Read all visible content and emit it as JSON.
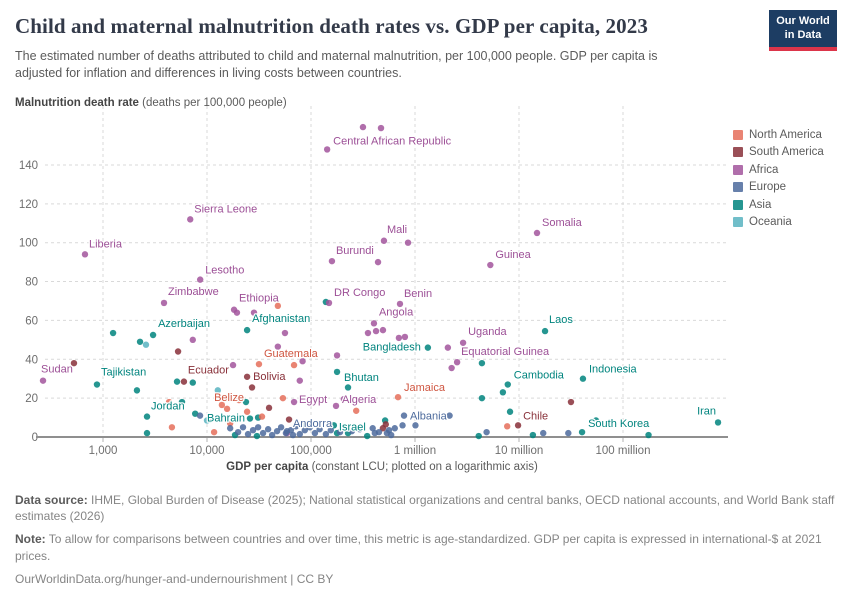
{
  "header": {
    "title": "Child and maternal malnutrition death rates vs. GDP per capita, 2023",
    "subtitle": "The estimated number of deaths attributed to child and maternal malnutrition, per 100,000 people. GDP per capita is adjusted for inflation and differences in living costs between countries.",
    "logo_line1": "Our World",
    "logo_line2": "in Data"
  },
  "chart_data": {
    "type": "scatter",
    "title": "Child and maternal malnutrition death rates vs. GDP per capita, 2023",
    "x_axis": {
      "label_bold": "GDP per capita",
      "label_rest": " (constant LCU; plotted on a logarithmic axis)",
      "scale": "log",
      "ticks": [
        1000,
        10000,
        100000,
        1000000,
        10000000,
        100000000
      ],
      "tick_labels": [
        "1,000",
        "10,000",
        "100,000",
        "1 million",
        "10 million",
        "100 million"
      ]
    },
    "y_axis": {
      "label_bold": "Malnutrition death rate",
      "label_rest": " (deaths per 100,000 people)",
      "ticks": [
        0,
        20,
        40,
        60,
        80,
        100,
        120,
        140
      ],
      "range": [
        0,
        160
      ]
    },
    "legend_position": "right",
    "grid": true,
    "continents": {
      "na": {
        "label": "North America",
        "color": "#e56e5a",
        "label_color": "#cf5641"
      },
      "sa": {
        "label": "South America",
        "color": "#883039",
        "label_color": "#883039"
      },
      "af": {
        "label": "Africa",
        "color": "#a2559c",
        "label_color": "#9c4f96"
      },
      "eu": {
        "label": "Europe",
        "color": "#4c6a9c",
        "label_color": "#4c6a9c"
      },
      "as": {
        "label": "Asia",
        "color": "#00847e",
        "label_color": "#00847e"
      },
      "oc": {
        "label": "Oceania",
        "color": "#58b3c0",
        "label_color": "#2d9aaa"
      }
    },
    "legend_order": [
      "na",
      "sa",
      "af",
      "eu",
      "as",
      "oc"
    ],
    "series": [
      {
        "name": "Central African Republic",
        "continent": "af",
        "gdp": 143000,
        "rate": 148,
        "dx": 6,
        "dy": -5,
        "anchor": "start"
      },
      {
        "name": "Sierra Leone",
        "continent": "af",
        "gdp": 6900,
        "rate": 112,
        "dx": 4,
        "dy": -7,
        "anchor": "start"
      },
      {
        "name": "Liberia",
        "continent": "af",
        "gdp": 671,
        "rate": 94,
        "dx": 4,
        "dy": -7,
        "anchor": "start"
      },
      {
        "name": "Somalia",
        "continent": "af",
        "gdp": 14900000,
        "rate": 105,
        "dx": 5,
        "dy": -7,
        "anchor": "start"
      },
      {
        "name": "Mali",
        "continent": "af",
        "gdp": 503000,
        "rate": 101,
        "dx": 3,
        "dy": -8,
        "anchor": "start"
      },
      {
        "name": "Burundi",
        "continent": "af",
        "gdp": 159000,
        "rate": 90.5,
        "dx": 4,
        "dy": -7,
        "anchor": "start"
      },
      {
        "name": "Guinea",
        "continent": "af",
        "gdp": 5300000,
        "rate": 88.5,
        "dx": 5,
        "dy": -7,
        "anchor": "start"
      },
      {
        "name": "DR Congo",
        "continent": "af",
        "gdp": 149000,
        "rate": 69,
        "dx": 5,
        "dy": -7,
        "anchor": "start"
      },
      {
        "name": "Benin",
        "continent": "af",
        "gdp": 717000,
        "rate": 68.5,
        "dx": 4,
        "dy": -7,
        "anchor": "start"
      },
      {
        "name": "Lesotho",
        "continent": "af",
        "gdp": 8600,
        "rate": 81,
        "dx": 5,
        "dy": -6,
        "anchor": "start"
      },
      {
        "name": "Zimbabwe",
        "continent": "af",
        "gdp": 3860,
        "rate": 69,
        "dx": 4,
        "dy": -8,
        "anchor": "start"
      },
      {
        "name": "Ethiopia",
        "continent": "af",
        "gdp": 18200,
        "rate": 65.5,
        "dx": 5,
        "dy": -8,
        "anchor": "start"
      },
      {
        "name": "Afghanistan",
        "continent": "as",
        "gdp": 24300,
        "rate": 55,
        "dx": 5,
        "dy": -8,
        "anchor": "start"
      },
      {
        "name": "Azerbaijan",
        "continent": "as",
        "gdp": 3030,
        "rate": 52.5,
        "dx": 5,
        "dy": -8,
        "anchor": "start"
      },
      {
        "name": "Angola",
        "continent": "af",
        "gdp": 403000,
        "rate": 58.5,
        "dx": 5,
        "dy": -8,
        "anchor": "start"
      },
      {
        "name": "Laos",
        "continent": "as",
        "gdp": 17800000,
        "rate": 54.5,
        "dx": 4,
        "dy": -8,
        "anchor": "start"
      },
      {
        "name": "Uganda",
        "continent": "af",
        "gdp": 2900000,
        "rate": 48.5,
        "dx": 5,
        "dy": -8,
        "anchor": "start"
      },
      {
        "name": "Bangladesh",
        "continent": "as",
        "gdp": 1330000,
        "rate": 46,
        "dx": -7,
        "dy": 3,
        "anchor": "end"
      },
      {
        "name": "Guatemala",
        "continent": "na",
        "gdp": 31600,
        "rate": 37.5,
        "dx": 5,
        "dy": -7,
        "anchor": "start"
      },
      {
        "name": "Equatorial Guinea",
        "continent": "af",
        "gdp": 2540000,
        "rate": 38.5,
        "dx": 4,
        "dy": -7,
        "anchor": "start"
      },
      {
        "name": "Sudan",
        "continent": "af",
        "gdp": 265,
        "rate": 29,
        "dx": -2,
        "dy": -8,
        "anchor": "start"
      },
      {
        "name": "Tajikistan",
        "continent": "as",
        "gdp": 875,
        "rate": 27,
        "dx": 4,
        "dy": -9,
        "anchor": "start"
      },
      {
        "name": "Ecuador",
        "continent": "sa",
        "gdp": 6000,
        "rate": 28.5,
        "dx": 4,
        "dy": -8,
        "anchor": "start"
      },
      {
        "name": "Bolivia",
        "continent": "sa",
        "gdp": 24300,
        "rate": 31,
        "dx": 6,
        "dy": 3,
        "anchor": "start"
      },
      {
        "name": "Bhutan",
        "continent": "as",
        "gdp": 178000,
        "rate": 33.5,
        "dx": 7,
        "dy": 9,
        "anchor": "start"
      },
      {
        "name": "Belize",
        "continent": "na",
        "gdp": 15600,
        "rate": 14.5,
        "dx": 2,
        "dy": -8,
        "anchor": "middle"
      },
      {
        "name": "Bahrain",
        "continent": "as",
        "gdp": 25900,
        "rate": 9.5,
        "dx": -5,
        "dy": 3,
        "anchor": "end"
      },
      {
        "name": "Jordan",
        "continent": "as",
        "gdp": 2650,
        "rate": 10.5,
        "dx": 4,
        "dy": -7,
        "anchor": "start"
      },
      {
        "name": "Egypt",
        "continent": "af",
        "gdp": 68700,
        "rate": 18,
        "dx": 5,
        "dy": 1,
        "anchor": "start"
      },
      {
        "name": "Algeria",
        "continent": "af",
        "gdp": 174000,
        "rate": 16,
        "dx": 6,
        "dy": -3,
        "anchor": "start"
      },
      {
        "name": "Israel",
        "continent": "as",
        "gdp": 166000,
        "rate": 6,
        "dx": 5,
        "dy": 5,
        "anchor": "start"
      },
      {
        "name": "Albania",
        "continent": "eu",
        "gdp": 784000,
        "rate": 11,
        "dx": 6,
        "dy": 4,
        "anchor": "start"
      },
      {
        "name": "Jamaica",
        "continent": "na",
        "gdp": 687000,
        "rate": 20.5,
        "dx": 6,
        "dy": -6,
        "anchor": "start"
      },
      {
        "name": "Chile",
        "continent": "sa",
        "gdp": 9800000,
        "rate": 6,
        "dx": 5,
        "dy": -6,
        "anchor": "start"
      },
      {
        "name": "Cambodia",
        "continent": "as",
        "gdp": 7800000,
        "rate": 27,
        "dx": 6,
        "dy": -6,
        "anchor": "start"
      },
      {
        "name": "Indonesia",
        "continent": "as",
        "gdp": 41200000,
        "rate": 30,
        "dx": 6,
        "dy": -6,
        "anchor": "start"
      },
      {
        "name": "South Korea",
        "continent": "as",
        "gdp": 40400000,
        "rate": 2.5,
        "dx": 6,
        "dy": -5,
        "anchor": "start"
      },
      {
        "name": "Iran",
        "continent": "as",
        "gdp": 820000000,
        "rate": 7.5,
        "dx": -2,
        "dy": -8,
        "anchor": "end"
      },
      {
        "name": "Andorra",
        "continent": "eu",
        "gdp": 58700,
        "rate": 3,
        "dx": 6,
        "dy": -4,
        "anchor": "start"
      }
    ],
    "background_points": {
      "af": [
        [
          316000,
          159.5
        ],
        [
          471000,
          159
        ],
        [
          857000,
          100
        ],
        [
          441000,
          90
        ],
        [
          28300,
          64
        ],
        [
          19400,
          64
        ],
        [
          56200,
          53.5
        ],
        [
          7300,
          50
        ],
        [
          48000,
          46.5
        ],
        [
          353000,
          53.5
        ],
        [
          422000,
          54.5
        ],
        [
          492000,
          55
        ],
        [
          700000,
          51
        ],
        [
          800000,
          51.5
        ],
        [
          2070000,
          46
        ],
        [
          178000,
          42
        ],
        [
          17800,
          37
        ],
        [
          78000,
          29
        ],
        [
          2250000,
          35.5
        ],
        [
          207000,
          19.5
        ],
        [
          58700,
          2
        ],
        [
          83000,
          39
        ]
      ],
      "as": [
        [
          1250,
          53.5
        ],
        [
          2270,
          49
        ],
        [
          139000,
          69.5
        ],
        [
          4400000,
          38
        ],
        [
          7000000,
          23
        ],
        [
          227000,
          25.5
        ],
        [
          2120,
          24
        ],
        [
          5750,
          18
        ],
        [
          7700,
          12
        ],
        [
          516000,
          8.5
        ],
        [
          4400000,
          20
        ],
        [
          8200000,
          13
        ],
        [
          55000000,
          8.5
        ],
        [
          178000,
          2
        ],
        [
          227000,
          2
        ],
        [
          18600,
          1
        ],
        [
          30200,
          0.5
        ],
        [
          347000,
          0.5
        ],
        [
          4100000,
          0.5
        ],
        [
          13600000,
          1
        ],
        [
          176000000,
          1
        ],
        [
          5150,
          28.5
        ],
        [
          7300,
          28
        ],
        [
          23700,
          18
        ],
        [
          10700,
          9
        ],
        [
          31000,
          10
        ],
        [
          2650,
          2
        ]
      ],
      "na": [
        [
          48000,
          67.5
        ],
        [
          68700,
          37
        ],
        [
          4320,
          18
        ],
        [
          4600,
          5
        ],
        [
          13900,
          16.5
        ],
        [
          20300,
          19
        ],
        [
          24300,
          13
        ],
        [
          33800,
          10.5
        ],
        [
          16700,
          7
        ],
        [
          272000,
          13.5
        ],
        [
          7700000,
          5.5
        ],
        [
          53700,
          20
        ],
        [
          11700,
          2.5
        ]
      ],
      "sa": [
        [
          526,
          38
        ],
        [
          5270,
          44
        ],
        [
          27100,
          25.5
        ],
        [
          524000,
          6.5
        ],
        [
          491000,
          4.5
        ],
        [
          31600000,
          18
        ],
        [
          61500,
          9
        ],
        [
          39500,
          15
        ]
      ],
      "eu": [
        [
          8570,
          11
        ],
        [
          16700,
          4.5
        ],
        [
          19900,
          2.5
        ],
        [
          22200,
          5
        ],
        [
          24800,
          1.5
        ],
        [
          27700,
          3.5
        ],
        [
          31000,
          5
        ],
        [
          34600,
          2
        ],
        [
          38700,
          4
        ],
        [
          42300,
          1
        ],
        [
          47200,
          3
        ],
        [
          51600,
          5
        ],
        [
          57400,
          2
        ],
        [
          64100,
          3.5
        ],
        [
          71600,
          5.5
        ],
        [
          78000,
          1.5
        ],
        [
          87200,
          3.5
        ],
        [
          97400,
          5
        ],
        [
          109000,
          2
        ],
        [
          121000,
          4
        ],
        [
          139000,
          1.5
        ],
        [
          155000,
          3.5
        ],
        [
          190000,
          2.5
        ],
        [
          247000,
          3
        ],
        [
          294000,
          4
        ],
        [
          392000,
          4.5
        ],
        [
          450000,
          2.5
        ],
        [
          562000,
          3.5
        ],
        [
          639000,
          4.5
        ],
        [
          759000,
          6
        ],
        [
          1010000,
          6
        ],
        [
          2150000,
          11
        ],
        [
          67100,
          1
        ],
        [
          411000,
          2
        ],
        [
          537000,
          2
        ],
        [
          590000,
          1
        ],
        [
          17100000,
          2
        ],
        [
          29800000,
          2
        ],
        [
          4880000,
          2.5
        ]
      ],
      "oc": [
        [
          2590,
          47.5
        ],
        [
          12700,
          24
        ],
        [
          10000,
          8.5
        ],
        [
          85800,
          6.5
        ]
      ]
    }
  },
  "footer": {
    "data_source_label": "Data source:",
    "data_source_text": " IHME, Global Burden of Disease (2025); National statistical organizations and central banks, OECD national accounts, and World Bank staff estimates (2026)",
    "note_label": "Note:",
    "note_text": " To allow for comparisons between countries and over time, this metric is age-standardized. GDP per capita is expressed in international-$ at 2021 prices.",
    "citation": "OurWorldinData.org/hunger-and-undernourishment | CC BY"
  }
}
